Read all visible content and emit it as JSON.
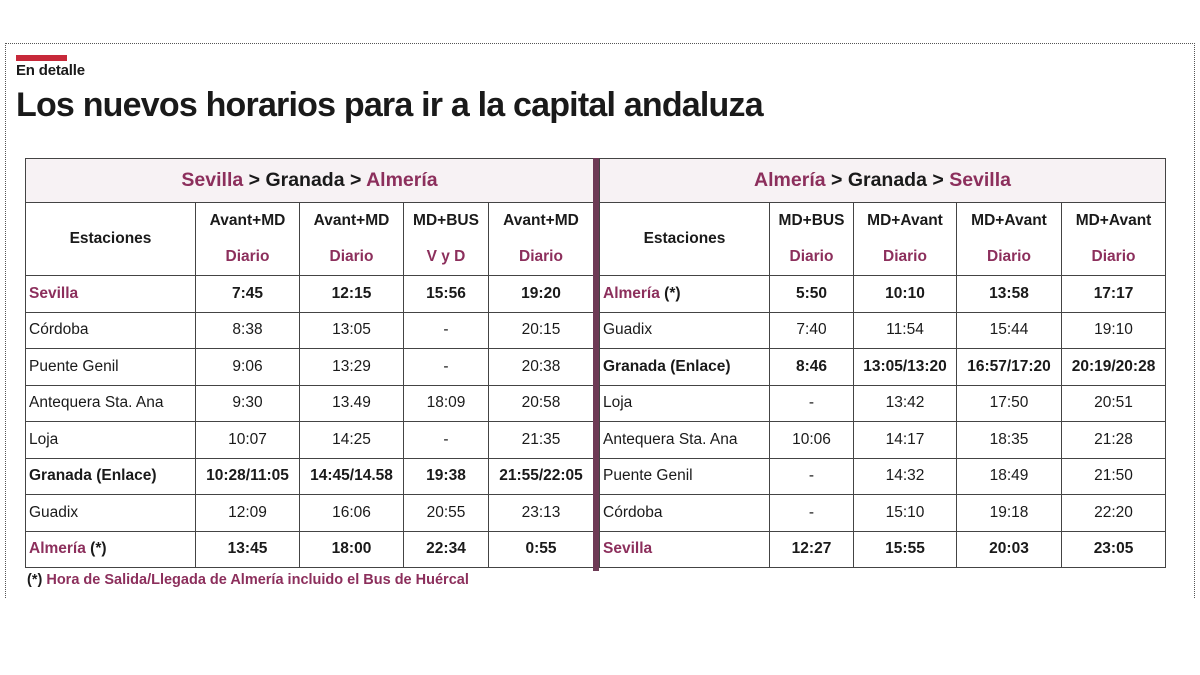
{
  "colors": {
    "accent": "#c7293a",
    "magenta": "#8c2f5c",
    "divider": "#6d3a55"
  },
  "kicker": "En detalle",
  "headline": "Los nuevos horarios para ir a la capital andaluza",
  "left_table": {
    "route": {
      "from": "Sevilla",
      "sep1": " > ",
      "via": "Granada",
      "sep2": " > ",
      "to": "Almería"
    },
    "station_header": "Estaciones",
    "services": [
      {
        "type": "Avant+MD",
        "freq": "Diario"
      },
      {
        "type": "Avant+MD",
        "freq": "Diario"
      },
      {
        "type": "MD+BUS",
        "freq": "V y D"
      },
      {
        "type": "Avant+MD",
        "freq": "Diario"
      }
    ],
    "rows": [
      {
        "station": "Sevilla",
        "suffix": "",
        "times": [
          "7:45",
          "12:15",
          "15:56",
          "19:20"
        ]
      },
      {
        "station": "Córdoba",
        "suffix": "",
        "times": [
          "8:38",
          "13:05",
          "-",
          "20:15"
        ]
      },
      {
        "station": "Puente Genil",
        "suffix": "",
        "times": [
          "9:06",
          "13:29",
          "-",
          "20:38"
        ]
      },
      {
        "station": "Antequera Sta. Ana",
        "suffix": "",
        "times": [
          "9:30",
          "13.49",
          "18:09",
          "20:58"
        ]
      },
      {
        "station": "Loja",
        "suffix": "",
        "times": [
          "10:07",
          "14:25",
          "-",
          "21:35"
        ]
      },
      {
        "station": "Granada (Enlace)",
        "suffix": "",
        "times": [
          "10:28/11:05",
          "14:45/14.58",
          "19:38",
          "21:55/22:05"
        ]
      },
      {
        "station": "Guadix",
        "suffix": "",
        "times": [
          "12:09",
          "16:06",
          "20:55",
          "23:13"
        ]
      },
      {
        "station": "Almería",
        "suffix": " (*)",
        "times": [
          "13:45",
          "18:00",
          "22:34",
          "0:55"
        ]
      }
    ]
  },
  "right_table": {
    "route": {
      "from": "Almería",
      "sep1": " > ",
      "via": "Granada",
      "sep2": " > ",
      "to": "Sevilla"
    },
    "station_header": "Estaciones",
    "services": [
      {
        "type": "MD+BUS",
        "freq": "Diario"
      },
      {
        "type": "MD+Avant",
        "freq": "Diario"
      },
      {
        "type": "MD+Avant",
        "freq": "Diario"
      },
      {
        "type": "MD+Avant",
        "freq": "Diario"
      }
    ],
    "rows": [
      {
        "station": "Almería",
        "suffix": " (*)",
        "times": [
          "5:50",
          "10:10",
          "13:58",
          "17:17"
        ]
      },
      {
        "station": "Guadix",
        "suffix": "",
        "times": [
          "7:40",
          "11:54",
          "15:44",
          "19:10"
        ]
      },
      {
        "station": "Granada (Enlace)",
        "suffix": "",
        "times": [
          "8:46",
          "13:05/13:20",
          "16:57/17:20",
          "20:19/20:28"
        ]
      },
      {
        "station": "Loja",
        "suffix": "",
        "times": [
          "-",
          "13:42",
          "17:50",
          "20:51"
        ]
      },
      {
        "station": "Antequera Sta. Ana",
        "suffix": "",
        "times": [
          "10:06",
          "14:17",
          "18:35",
          "21:28"
        ]
      },
      {
        "station": "Puente Genil",
        "suffix": "",
        "times": [
          "-",
          "14:32",
          "18:49",
          "21:50"
        ]
      },
      {
        "station": "Córdoba",
        "suffix": "",
        "times": [
          "-",
          "15:10",
          "19:18",
          "22:20"
        ]
      },
      {
        "station": "Sevilla",
        "suffix": "",
        "times": [
          "12:27",
          "15:55",
          "20:03",
          "23:05"
        ]
      }
    ]
  },
  "footnote": {
    "mark": "(*)",
    "text": " Hora de Salida/Llegada de Almería incluido el Bus de Huércal"
  }
}
